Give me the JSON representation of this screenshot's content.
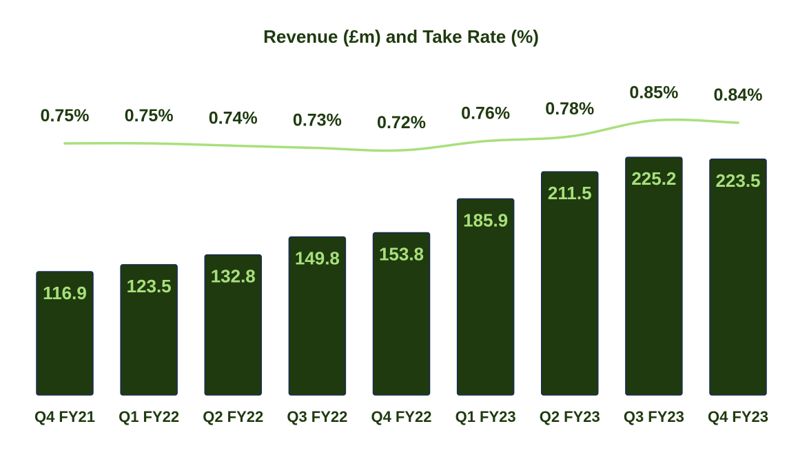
{
  "chart_data": {
    "type": "bar",
    "title": "Revenue (£m) and Take Rate (%)",
    "categories": [
      "Q4 FY21",
      "Q1 FY22",
      "Q2 FY22",
      "Q3 FY22",
      "Q4 FY22",
      "Q1 FY23",
      "Q2 FY23",
      "Q3 FY23",
      "Q4 FY23"
    ],
    "series": [
      {
        "values": [
          116.9,
          123.5,
          132.8,
          149.8,
          153.8,
          185.9,
          211.5,
          225.2,
          223.5
        ],
        "type": "bar"
      },
      {
        "values": [
          0.75,
          0.75,
          0.74,
          0.73,
          0.72,
          0.76,
          0.78,
          0.85,
          0.84
        ],
        "type": "line"
      }
    ],
    "bar_labels": [
      "116.9",
      "123.5",
      "132.8",
      "149.8",
      "153.8",
      "185.9",
      "211.5",
      "225.2",
      "223.5"
    ],
    "line_labels": [
      "0.75%",
      "0.75%",
      "0.74%",
      "0.73%",
      "0.72%",
      "0.76%",
      "0.78%",
      "0.85%",
      "0.84%"
    ],
    "ylim_bar": [
      0,
      250
    ],
    "ylim_line": [
      0.6,
      0.95
    ],
    "grid": false,
    "legend": "none",
    "colors": {
      "bar": "#1f3a0f",
      "bar_outline": "#1a2a55",
      "line": "#a8e07a",
      "bar_label": "#a8e07a",
      "text": "#1f3a0f"
    }
  }
}
